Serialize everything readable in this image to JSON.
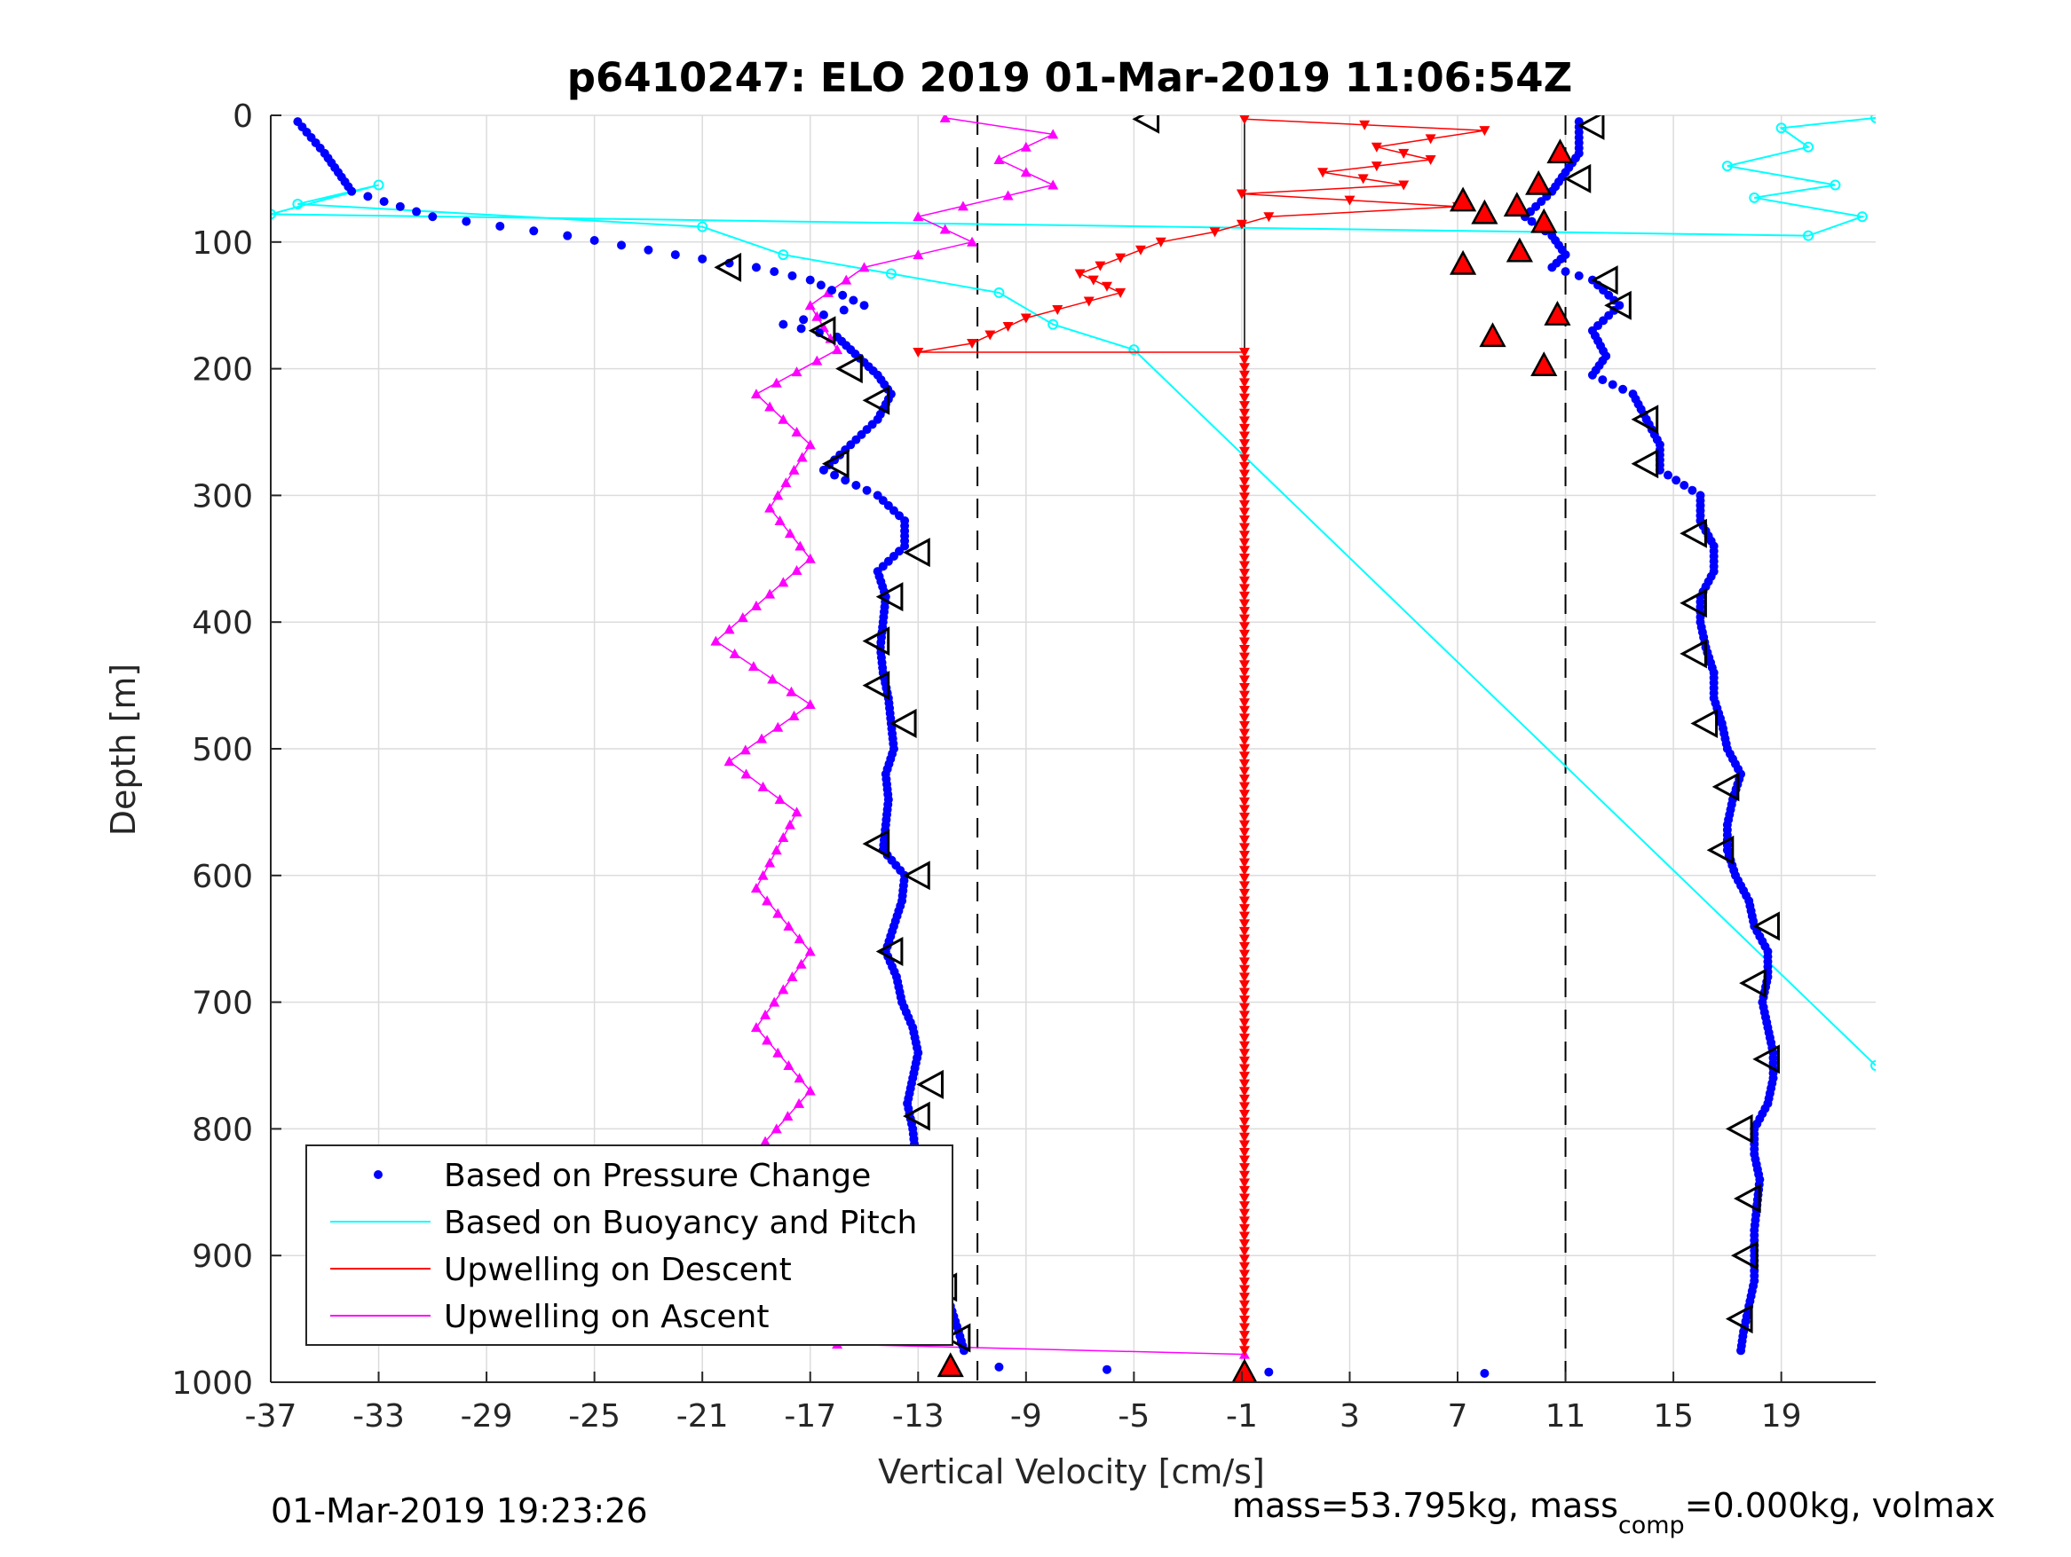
{
  "chart_data": {
    "type": "scatter",
    "title": "p6410247: ELO 2019 01-Mar-2019 11:06:54Z",
    "xlabel": "Vertical Velocity [cm/s]",
    "ylabel": "Depth [m]",
    "xlim": [
      -37,
      22.5
    ],
    "ylim": [
      0,
      1000
    ],
    "y_reversed": true,
    "x_ticks": [
      -37,
      -33,
      -29,
      -25,
      -21,
      -17,
      -13,
      -9,
      -5,
      -1,
      3,
      7,
      11,
      15,
      19
    ],
    "x_tick_labels": [
      "-37",
      "-33",
      "-29",
      "-25",
      "-21",
      "-17",
      "-13",
      "-9",
      "-5",
      "-1",
      "3",
      "7",
      "11",
      "15",
      "19"
    ],
    "y_ticks": [
      0,
      100,
      200,
      300,
      400,
      500,
      600,
      700,
      800,
      900,
      1000
    ],
    "y_tick_labels": [
      "0",
      "100",
      "200",
      "300",
      "400",
      "500",
      "600",
      "700",
      "800",
      "900",
      "1000"
    ],
    "grid": true,
    "legend_position": "bottom-left",
    "colors": {
      "pressure": "#0000ff",
      "buoyancy": "#00ffff",
      "descent": "#ff0000",
      "ascent": "#ff00ff",
      "markers": "#000000"
    },
    "reference_lines": {
      "dashed_x": [
        -10.8,
        11
      ],
      "solid_x": [
        -0.9
      ]
    },
    "legend": [
      "Based on Pressure Change",
      "Based on Buoyancy and Pitch",
      "Upwelling on Descent",
      "Upwelling on Ascent"
    ],
    "series": [
      {
        "name": "Based on Pressure Change",
        "style": "dots",
        "profiles": [
          {
            "depth": [
              5,
              30,
              60,
              80,
              95,
              110,
              120,
              130,
              150,
              165,
              175,
              185,
              195,
              205,
              220,
              240,
              260,
              280,
              300,
              320,
              340,
              360,
              380,
              400,
              420,
              440,
              460,
              480,
              500,
              520,
              540,
              560,
              580,
              600,
              620,
              640,
              660,
              680,
              700,
              720,
              740,
              760,
              780,
              800,
              820,
              840,
              860,
              880,
              900,
              920,
              940,
              960,
              975
            ],
            "velocity": [
              -36,
              -35,
              -34,
              -31,
              -26,
              -22,
              -19,
              -17,
              -15,
              -18,
              -16,
              -15.5,
              -15,
              -14.5,
              -14,
              -14.5,
              -15.5,
              -16.5,
              -14.5,
              -13.5,
              -13.5,
              -14.5,
              -14.2,
              -14.3,
              -14.4,
              -14.3,
              -14.1,
              -14,
              -13.9,
              -14.2,
              -14.1,
              -14.2,
              -14.3,
              -13.5,
              -13.6,
              -13.9,
              -14.2,
              -13.8,
              -13.6,
              -13.2,
              -13,
              -13.2,
              -13.4,
              -13.2,
              -13.1,
              -13,
              -12.9,
              -12.9,
              -12.8,
              -12.6,
              -11.8,
              -11.5,
              -11.3
            ]
          },
          {
            "depth": [
              5,
              30,
              60,
              80,
              95,
              110,
              120,
              130,
              150,
              170,
              190,
              205,
              220,
              240,
              260,
              280,
              300,
              320,
              340,
              360,
              380,
              400,
              420,
              440,
              460,
              480,
              500,
              520,
              540,
              560,
              580,
              600,
              620,
              640,
              660,
              680,
              700,
              720,
              740,
              760,
              780,
              800,
              820,
              840,
              860,
              880,
              900,
              920,
              940,
              960,
              975
            ],
            "velocity": [
              11.5,
              11.5,
              10.5,
              9.5,
              10.5,
              11,
              10.5,
              12,
              13,
              12,
              12.5,
              12,
              13.5,
              14,
              14.5,
              14.5,
              16,
              16,
              16.5,
              16.5,
              16,
              16,
              16.2,
              16.5,
              16.5,
              16.8,
              17,
              17.5,
              17.2,
              17,
              17,
              17.3,
              17.8,
              18,
              18.5,
              18.5,
              18.3,
              18.5,
              18.7,
              18.7,
              18.5,
              18,
              18,
              18.2,
              18.1,
              18,
              18,
              18,
              17.8,
              17.6,
              17.5
            ]
          },
          {
            "depth": [
              988,
              990,
              992,
              993
            ],
            "velocity": [
              -10,
              -6,
              0,
              8
            ]
          }
        ]
      },
      {
        "name": "Based on Buoyancy and Pitch",
        "style": "line-with-circles",
        "points": [
          {
            "velocity": 22.5,
            "depth": 2
          },
          {
            "velocity": 19,
            "depth": 10
          },
          {
            "velocity": 20,
            "depth": 25
          },
          {
            "velocity": 17,
            "depth": 40
          },
          {
            "velocity": 21,
            "depth": 55
          },
          {
            "velocity": 18,
            "depth": 65
          },
          {
            "velocity": 22,
            "depth": 80
          },
          {
            "velocity": 20,
            "depth": 95
          },
          {
            "velocity": -37,
            "depth": 78
          },
          {
            "velocity": -33,
            "depth": 55
          },
          {
            "velocity": -36,
            "depth": 70
          },
          {
            "velocity": -21,
            "depth": 88
          },
          {
            "velocity": -18,
            "depth": 110
          },
          {
            "velocity": -14,
            "depth": 125
          },
          {
            "velocity": -10,
            "depth": 140
          },
          {
            "velocity": -8,
            "depth": 165
          },
          {
            "velocity": -5,
            "depth": 185
          },
          {
            "velocity": 22.5,
            "depth": 750
          }
        ]
      },
      {
        "name": "Upwelling on Descent",
        "style": "line-with-down-triangles",
        "points": [
          {
            "velocity": -0.9,
            "depth": 3
          },
          {
            "velocity": 8,
            "depth": 12
          },
          {
            "velocity": 4,
            "depth": 25
          },
          {
            "velocity": 6,
            "depth": 35
          },
          {
            "velocity": 2,
            "depth": 45
          },
          {
            "velocity": 5,
            "depth": 55
          },
          {
            "velocity": -1,
            "depth": 62
          },
          {
            "velocity": 7,
            "depth": 72
          },
          {
            "velocity": 0,
            "depth": 80
          },
          {
            "velocity": -2,
            "depth": 92
          },
          {
            "velocity": -4,
            "depth": 100
          },
          {
            "velocity": -7,
            "depth": 125
          },
          {
            "velocity": -5.5,
            "depth": 140
          },
          {
            "velocity": -9,
            "depth": 160
          },
          {
            "velocity": -11,
            "depth": 180
          },
          {
            "velocity": -13,
            "depth": 187
          },
          {
            "velocity": -0.9,
            "depth": 187
          },
          {
            "velocity": -0.9,
            "depth": 975
          }
        ]
      },
      {
        "name": "Upwelling on Ascent",
        "style": "line-with-up-triangles",
        "points": [
          {
            "velocity": -12,
            "depth": 2
          },
          {
            "velocity": -8,
            "depth": 15
          },
          {
            "velocity": -10,
            "depth": 35
          },
          {
            "velocity": -8,
            "depth": 55
          },
          {
            "velocity": -13,
            "depth": 80
          },
          {
            "velocity": -11,
            "depth": 100
          },
          {
            "velocity": -15,
            "depth": 120
          },
          {
            "velocity": -17,
            "depth": 150
          },
          {
            "velocity": -16,
            "depth": 185
          },
          {
            "velocity": -19,
            "depth": 220
          },
          {
            "velocity": -17,
            "depth": 260
          },
          {
            "velocity": -18.5,
            "depth": 310
          },
          {
            "velocity": -17,
            "depth": 350
          },
          {
            "velocity": -20.5,
            "depth": 415
          },
          {
            "velocity": -17,
            "depth": 465
          },
          {
            "velocity": -20,
            "depth": 510
          },
          {
            "velocity": -17.5,
            "depth": 550
          },
          {
            "velocity": -19,
            "depth": 610
          },
          {
            "velocity": -17,
            "depth": 660
          },
          {
            "velocity": -19,
            "depth": 720
          },
          {
            "velocity": -17,
            "depth": 770
          },
          {
            "velocity": -19.5,
            "depth": 830
          },
          {
            "velocity": -17.5,
            "depth": 880
          },
          {
            "velocity": -19,
            "depth": 930
          },
          {
            "velocity": -16,
            "depth": 970
          },
          {
            "velocity": -0.9,
            "depth": 978
          }
        ]
      }
    ],
    "surfacing_markers": [
      {
        "velocity": -4.5,
        "depth": 3
      },
      {
        "velocity": -20,
        "depth": 120
      },
      {
        "velocity": -16.5,
        "depth": 170
      },
      {
        "velocity": -15.5,
        "depth": 200
      },
      {
        "velocity": -14.5,
        "depth": 225
      },
      {
        "velocity": -16,
        "depth": 275
      },
      {
        "velocity": -13,
        "depth": 345
      },
      {
        "velocity": -14,
        "depth": 380
      },
      {
        "velocity": -14.5,
        "depth": 415
      },
      {
        "velocity": -14.5,
        "depth": 450
      },
      {
        "velocity": -13.5,
        "depth": 480
      },
      {
        "velocity": -14.5,
        "depth": 575
      },
      {
        "velocity": -13,
        "depth": 600
      },
      {
        "velocity": -14,
        "depth": 660
      },
      {
        "velocity": -12.5,
        "depth": 765
      },
      {
        "velocity": -13,
        "depth": 790
      },
      {
        "velocity": -12.5,
        "depth": 825
      },
      {
        "velocity": -12,
        "depth": 925
      },
      {
        "velocity": -11.5,
        "depth": 965
      },
      {
        "velocity": 12,
        "depth": 8
      },
      {
        "velocity": 11.5,
        "depth": 50
      },
      {
        "velocity": 12.5,
        "depth": 130
      },
      {
        "velocity": 13,
        "depth": 150
      },
      {
        "velocity": 14,
        "depth": 240
      },
      {
        "velocity": 14,
        "depth": 275
      },
      {
        "velocity": 15.8,
        "depth": 330
      },
      {
        "velocity": 15.8,
        "depth": 385
      },
      {
        "velocity": 15.8,
        "depth": 425
      },
      {
        "velocity": 16.2,
        "depth": 480
      },
      {
        "velocity": 17,
        "depth": 530
      },
      {
        "velocity": 16.8,
        "depth": 580
      },
      {
        "velocity": 18.5,
        "depth": 640
      },
      {
        "velocity": 18,
        "depth": 685
      },
      {
        "velocity": 18.5,
        "depth": 745
      },
      {
        "velocity": 17.5,
        "depth": 800
      },
      {
        "velocity": 17.8,
        "depth": 855
      },
      {
        "velocity": 17.7,
        "depth": 900
      },
      {
        "velocity": 17.5,
        "depth": 950
      }
    ],
    "ascent_end_markers": [
      {
        "velocity": 10.8,
        "depth": 30
      },
      {
        "velocity": 10,
        "depth": 55
      },
      {
        "velocity": 7.2,
        "depth": 68
      },
      {
        "velocity": 8,
        "depth": 78
      },
      {
        "velocity": 9.2,
        "depth": 72
      },
      {
        "velocity": 10.2,
        "depth": 85
      },
      {
        "velocity": 9.3,
        "depth": 108
      },
      {
        "velocity": 7.2,
        "depth": 118
      },
      {
        "velocity": 10.7,
        "depth": 158
      },
      {
        "velocity": 8.3,
        "depth": 175
      },
      {
        "velocity": 10.2,
        "depth": 198
      },
      {
        "velocity": -11.8,
        "depth": 988
      },
      {
        "velocity": -0.9,
        "depth": 993
      }
    ]
  },
  "footer": {
    "timestamp": "01-Mar-2019 19:23:26",
    "mass_text": "mass=53.795kg, mass",
    "mass_sub": "comp",
    "mass_tail": "=0.000kg, volmax"
  }
}
